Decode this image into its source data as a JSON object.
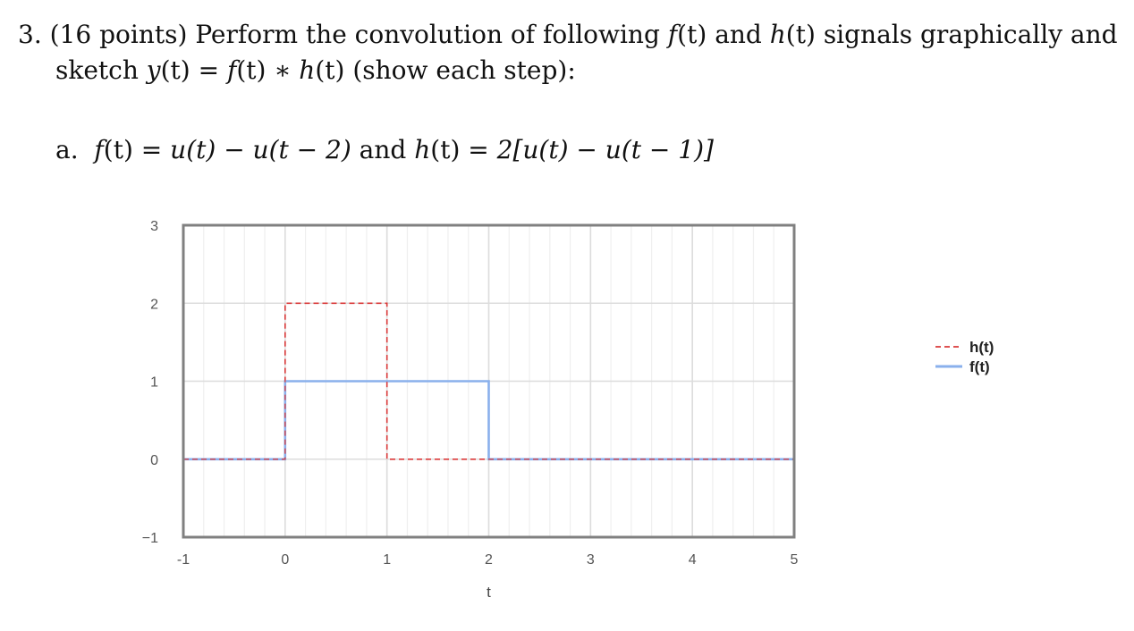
{
  "problem": {
    "number": "3.",
    "points": "(16 points)",
    "intro": "Perform the convolution of following",
    "f": "f",
    "t": "(t)",
    "and": "and",
    "h": "h",
    "rest": "signals graphically and",
    "sketch_prefix": "sketch",
    "y": "y",
    "eq_mid": "(t) = ",
    "conv": "(t) ∗ ",
    "show": "(show each step):"
  },
  "part_a": {
    "label": "a.",
    "f_expr_lhs": "(t) = ",
    "f_expr_rhs": "u(t) − u(t − 2)",
    "and": "and",
    "h_expr_lhs": "(t) = ",
    "h_expr_rhs": "2[u(t) − u(t − 1)]"
  },
  "chart_data": {
    "type": "line",
    "xlabel": "t",
    "ylabel": "",
    "xlim": [
      -1,
      5
    ],
    "ylim": [
      -1,
      3
    ],
    "x_ticks": [
      "-1",
      "0",
      "1",
      "2",
      "3",
      "4",
      "5"
    ],
    "y_ticks": [
      "−1",
      "0",
      "1",
      "2",
      "3"
    ],
    "grid": true,
    "legend_position": "right",
    "series": [
      {
        "name": "h(t)",
        "style": "dashed",
        "color": "#d93a3a",
        "points": [
          [
            -1,
            0
          ],
          [
            0,
            0
          ],
          [
            0,
            2
          ],
          [
            1,
            2
          ],
          [
            1,
            0
          ],
          [
            5,
            0
          ]
        ]
      },
      {
        "name": "f(t)",
        "style": "solid",
        "color": "#8ab0ec",
        "points": [
          [
            -1,
            0
          ],
          [
            0,
            0
          ],
          [
            0,
            1
          ],
          [
            2,
            1
          ],
          [
            2,
            0
          ],
          [
            5,
            0
          ]
        ]
      }
    ]
  }
}
